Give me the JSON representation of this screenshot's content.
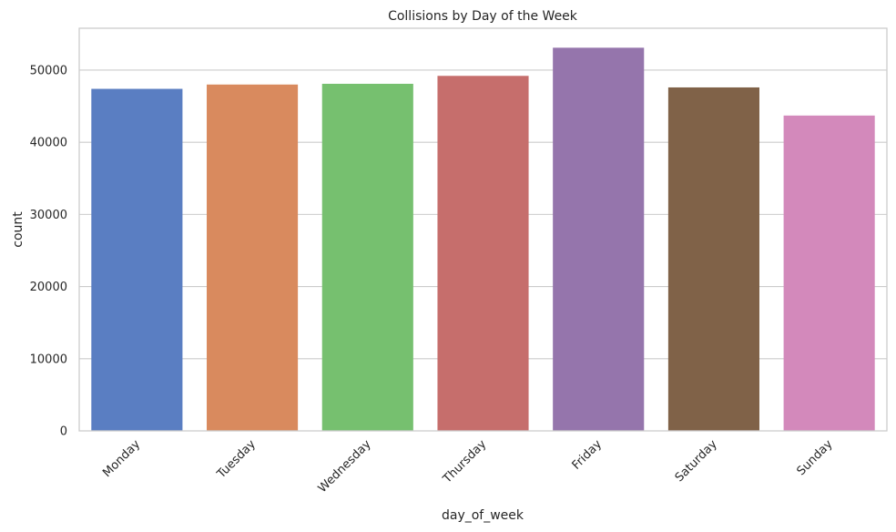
{
  "chart_data": {
    "type": "bar",
    "title": "Collisions by Day of the Week",
    "xlabel": "day_of_week",
    "ylabel": "count",
    "categories": [
      "Monday",
      "Tuesday",
      "Wednesday",
      "Thursday",
      "Friday",
      "Saturday",
      "Sunday"
    ],
    "values": [
      47400,
      48000,
      48100,
      49200,
      53100,
      47600,
      43700
    ],
    "colors": [
      "#5a7ec2",
      "#d98a5e",
      "#76c06f",
      "#c66e6c",
      "#9575ac",
      "#806248",
      "#d389bb"
    ],
    "ylim": [
      0,
      55800
    ],
    "yticks": [
      0,
      10000,
      20000,
      30000,
      40000,
      50000
    ],
    "ytick_labels": [
      "0",
      "10000",
      "20000",
      "30000",
      "40000",
      "50000"
    ],
    "grid": true,
    "xtick_rotation": 45
  }
}
